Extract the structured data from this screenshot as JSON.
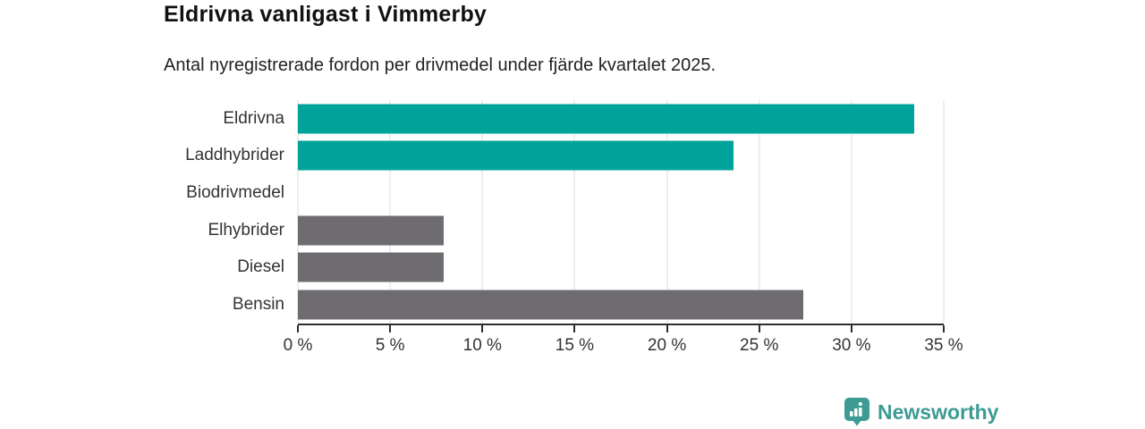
{
  "chart_data": {
    "type": "bar",
    "orientation": "horizontal",
    "title": "Eldrivna vanligast i Vimmerby",
    "subtitle": "Antal nyregistrerade fordon per drivmedel under fjärde kvartalet 2025.",
    "categories": [
      "Eldrivna",
      "Laddhybrider",
      "Biodrivmedel",
      "Elhybrider",
      "Diesel",
      "Bensin"
    ],
    "values": [
      33.4,
      23.6,
      0,
      7.9,
      7.9,
      27.4
    ],
    "unit": "%",
    "xlim": [
      0,
      35
    ],
    "x_ticks": [
      0,
      5,
      10,
      15,
      20,
      25,
      30,
      35
    ],
    "x_tick_labels": [
      "0 %",
      "5 %",
      "10 %",
      "15 %",
      "20 %",
      "25 %",
      "30 %",
      "35 %"
    ],
    "bar_colors": [
      "#00A39A",
      "#00A39A",
      "#00A39A",
      "#6E6C71",
      "#6E6C71",
      "#6E6C71"
    ],
    "grid": true,
    "legend": false,
    "colors": {
      "highlight": "#00A39A",
      "muted": "#6E6C71",
      "gridline": "#DCDCDC",
      "axis": "#2E2E2E",
      "tick_text": "#333333",
      "title_text": "#111111"
    }
  },
  "branding": {
    "logo_text": "Newsworthy",
    "logo_color": "#3D9B94",
    "logo_icon": "newsworthy-pin-bar-chart-icon"
  }
}
